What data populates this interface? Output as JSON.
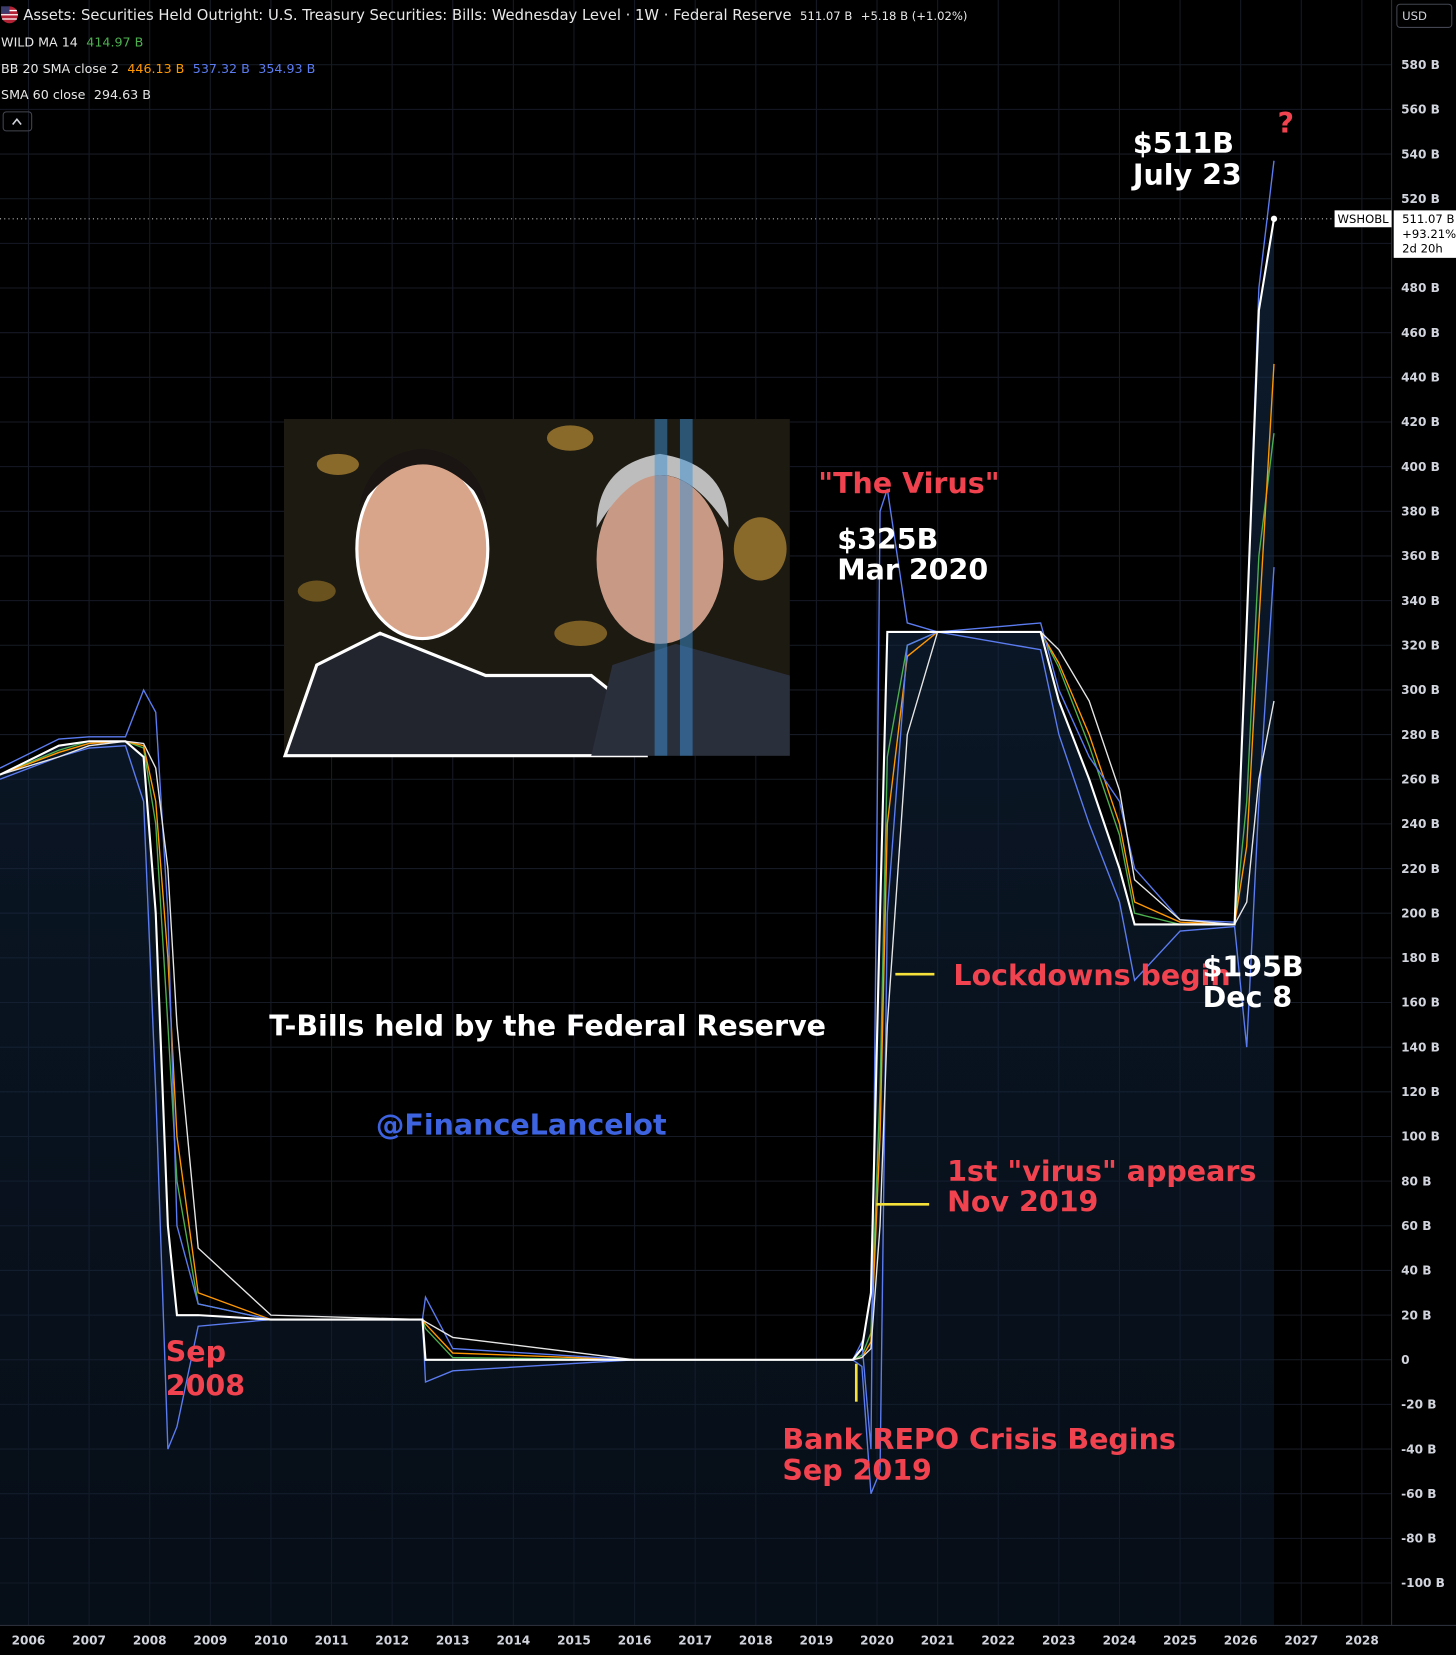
{
  "chart_data": {
    "type": "line",
    "title": "Assets: Securities Held Outright: U.S. Treasury Securities: Bills: Wednesday Level · 1W · Federal Reserve",
    "last_value_label": "511.07 B",
    "change_label": "+5.18 B (+1.02%)",
    "currency": "USD",
    "x": [
      2005.53,
      2006.5,
      2007.0,
      2007.6,
      2007.9,
      2008.1,
      2008.3,
      2008.45,
      2008.8,
      2010.0,
      2012.5,
      2012.55,
      2013.0,
      2016.0,
      2019.6,
      2019.75,
      2019.9,
      2020.05,
      2020.17,
      2020.5,
      2021.0,
      2022.7,
      2023.0,
      2023.5,
      2024.0,
      2024.25,
      2025.0,
      2025.9,
      2026.1,
      2026.3,
      2026.55
    ],
    "series": [
      {
        "name": "WSHOBL",
        "color": "#ffffff",
        "price_tag": [
          "511.07 B",
          "+93.21%",
          "2d 20h"
        ],
        "values": [
          262,
          275,
          277,
          277,
          270,
          200,
          60,
          20,
          20,
          18,
          18,
          0,
          0,
          0,
          0,
          5,
          30,
          200,
          326,
          326,
          326,
          326,
          295,
          260,
          220,
          195,
          195,
          195,
          330,
          470,
          511
        ]
      }
    ],
    "indicators": [
      {
        "name": "WILD MA 14",
        "lines": [
          {
            "color": "#4caf50",
            "label": "414.97 B",
            "values": [
              262,
              273,
              277,
              277,
              274,
              240,
              150,
              80,
              25,
              18,
              18,
              14,
              1,
              0,
              0,
              2,
              12,
              120,
              270,
              320,
              326,
              326,
              310,
              275,
              235,
              200,
              195,
              195,
              250,
              360,
              415
            ]
          }
        ]
      },
      {
        "name": "BB 20 SMA close 2",
        "lines": [
          {
            "color": "#ff9800",
            "label": "446.13 B",
            "values": [
              262,
              272,
              276,
              277,
              275,
              250,
              180,
              100,
              30,
              18,
              18,
              16,
              3,
              0,
              0,
              1,
              8,
              100,
              240,
              315,
              326,
              326,
              312,
              280,
              240,
              205,
              196,
              195,
              230,
              330,
              446
            ]
          },
          {
            "color": "#5b7cf0",
            "label": "537.32 B",
            "values": [
              265,
              278,
              279,
              279,
              300,
              290,
              200,
              60,
              25,
              18,
              18,
              28,
              5,
              0,
              0,
              8,
              -40,
              380,
              390,
              330,
              326,
              330,
              300,
              270,
              250,
              220,
              197,
              196,
              330,
              480,
              537
            ]
          },
          {
            "color": "#5b7cf0",
            "label": "354.93 B",
            "values": [
              260,
              270,
              274,
              275,
              250,
              120,
              -40,
              -30,
              15,
              18,
              18,
              -10,
              -5,
              0,
              0,
              -3,
              -60,
              -50,
              200,
              320,
              326,
              318,
              280,
              240,
              205,
              170,
              192,
              194,
              140,
              250,
              355
            ]
          }
        ]
      },
      {
        "name": "SMA 60 close",
        "lines": [
          {
            "color": "#e6e6e6",
            "label": "294.63 B",
            "values": [
              262,
              270,
              275,
              277,
              276,
              265,
              220,
              150,
              50,
              20,
              18,
              17,
              10,
              0,
              0,
              1,
              5,
              60,
              150,
              280,
              326,
              326,
              318,
              295,
              255,
              215,
              197,
              195,
              205,
              260,
              295
            ]
          }
        ]
      }
    ],
    "xlim": [
      2005.53,
      2028.49
    ],
    "xticks": [
      2006,
      2007,
      2008,
      2009,
      2010,
      2011,
      2012,
      2013,
      2014,
      2015,
      2016,
      2017,
      2018,
      2019,
      2020,
      2021,
      2022,
      2023,
      2024,
      2025,
      2026,
      2027,
      2028
    ],
    "ylim": [
      -119,
      609
    ],
    "yticks": [
      {
        "value": -100,
        "label": "-100 B"
      },
      {
        "value": -80,
        "label": "-80 B"
      },
      {
        "value": -60,
        "label": "-60 B"
      },
      {
        "value": -40,
        "label": "-40 B"
      },
      {
        "value": -20,
        "label": "-20 B"
      },
      0,
      {
        "value": 20,
        "label": "20 B"
      },
      {
        "value": 40,
        "label": "40 B"
      },
      {
        "value": 60,
        "label": "60 B"
      },
      {
        "value": 80,
        "label": "80 B"
      },
      {
        "value": 100,
        "label": "100 B"
      },
      {
        "value": 120,
        "label": "120 B"
      },
      {
        "value": 140,
        "label": "140 B"
      },
      {
        "value": 160,
        "label": "160 B"
      },
      {
        "value": 180,
        "label": "180 B"
      },
      {
        "value": 200,
        "label": "200 B"
      },
      {
        "value": 220,
        "label": "220 B"
      },
      {
        "value": 240,
        "label": "240 B"
      },
      {
        "value": 260,
        "label": "260 B"
      },
      {
        "value": 280,
        "label": "280 B"
      },
      {
        "value": 300,
        "label": "300 B"
      },
      {
        "value": 320,
        "label": "320 B"
      },
      {
        "value": 340,
        "label": "340 B"
      },
      {
        "value": 360,
        "label": "360 B"
      },
      {
        "value": 380,
        "label": "380 B"
      },
      {
        "value": 400,
        "label": "400 B"
      },
      {
        "value": 420,
        "label": "420 B"
      },
      {
        "value": 440,
        "label": "440 B"
      },
      {
        "value": 460,
        "label": "460 B"
      },
      {
        "value": 480,
        "label": "480 B"
      },
      {
        "value": 500,
        "label": "500 B"
      },
      {
        "value": 520,
        "label": "520 B"
      },
      {
        "value": 540,
        "label": "540 B"
      },
      {
        "value": 560,
        "label": "560 B"
      },
      {
        "value": 580,
        "label": "580 B"
      }
    ],
    "grid": true,
    "annotations": [
      {
        "lines": [
          "$511B",
          "July 23"
        ],
        "color": "#ffffff"
      },
      {
        "lines": [
          "?"
        ],
        "color": "#f0434f"
      },
      {
        "lines": [
          "\"The Virus\""
        ],
        "color": "#f0434f"
      },
      {
        "lines": [
          "$325B",
          "Mar 2020"
        ],
        "color": "#ffffff"
      },
      {
        "lines": [
          "Lockdowns begin"
        ],
        "color": "#f0434f"
      },
      {
        "lines": [
          "$195B",
          "Dec 8"
        ],
        "color": "#ffffff"
      },
      {
        "lines": [
          "T-Bills held by the Federal Reserve"
        ],
        "color": "#ffffff"
      },
      {
        "lines": [
          "@FinanceLancelot"
        ],
        "color": "#3d63e0"
      },
      {
        "lines": [
          "1st \"virus\" appears",
          "Nov 2019"
        ],
        "color": "#f0434f"
      },
      {
        "lines": [
          "Sep",
          "2008"
        ],
        "color": "#f0434f"
      },
      {
        "lines": [
          "Bank REPO Crisis Begins",
          "Sep 2019"
        ],
        "color": "#f0434f"
      }
    ]
  }
}
